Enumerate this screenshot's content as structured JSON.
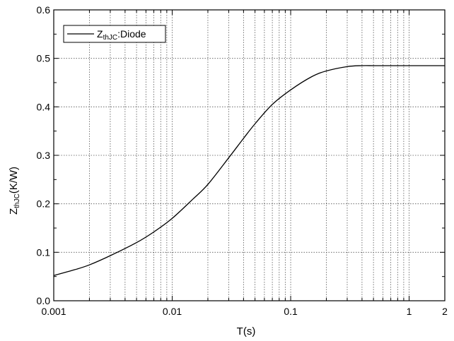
{
  "chart_data": {
    "type": "line",
    "title": "",
    "xlabel": "T(s)",
    "ylabel": {
      "main": "Z",
      "sub": "thJC",
      "rest": "(K/W)"
    },
    "xscale": "log",
    "xlim": [
      0.001,
      2
    ],
    "ylim": [
      0.0,
      0.6
    ],
    "grid": true,
    "legend_position": "top-left",
    "xticks": [
      {
        "value": 0.001,
        "label": "0.001"
      },
      {
        "value": 0.01,
        "label": "0.01"
      },
      {
        "value": 0.1,
        "label": "0.1"
      },
      {
        "value": 1,
        "label": "1"
      },
      {
        "value": 2,
        "label": "2"
      }
    ],
    "yticks": [
      {
        "value": 0.0,
        "label": "0.0"
      },
      {
        "value": 0.1,
        "label": "0.1"
      },
      {
        "value": 0.2,
        "label": "0.2"
      },
      {
        "value": 0.3,
        "label": "0.3"
      },
      {
        "value": 0.4,
        "label": "0.4"
      },
      {
        "value": 0.5,
        "label": "0.5"
      },
      {
        "value": 0.6,
        "label": "0.6"
      }
    ],
    "series": [
      {
        "legend": {
          "main": "Z",
          "sub": "thJC",
          "rest": ":Diode"
        },
        "color": "#000000",
        "x": [
          0.001,
          0.0015,
          0.002,
          0.003,
          0.005,
          0.007,
          0.01,
          0.015,
          0.02,
          0.03,
          0.04,
          0.05,
          0.07,
          0.1,
          0.15,
          0.2,
          0.3,
          0.4,
          0.5,
          0.7,
          1,
          1.5,
          2
        ],
        "y": [
          0.052,
          0.064,
          0.074,
          0.093,
          0.12,
          0.142,
          0.17,
          0.21,
          0.24,
          0.295,
          0.335,
          0.365,
          0.405,
          0.435,
          0.462,
          0.474,
          0.483,
          0.485,
          0.485,
          0.485,
          0.485,
          0.485,
          0.485
        ]
      }
    ]
  }
}
